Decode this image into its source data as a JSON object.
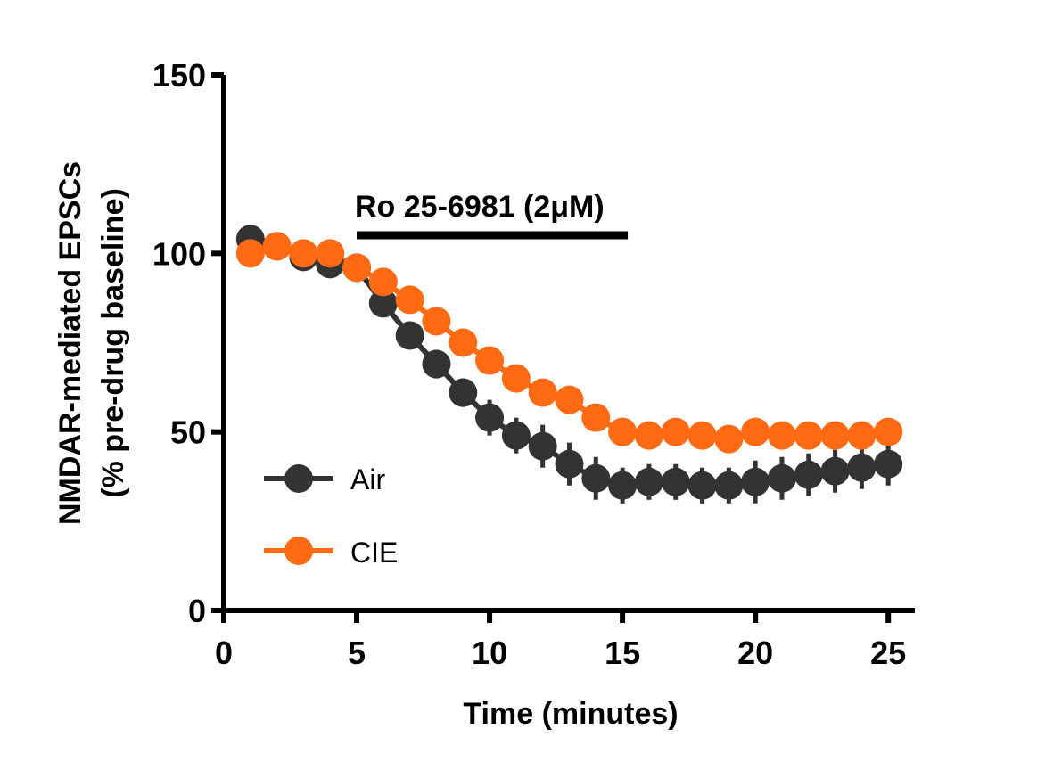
{
  "chart_data": {
    "type": "line",
    "xlabel": "Time (minutes)",
    "ylabel_line1": "NMDAR-mediated EPSCs",
    "ylabel_line2": "(% pre-drug baseline)",
    "xlim": [
      0,
      26
    ],
    "ylim": [
      0,
      150
    ],
    "xticks": [
      0,
      5,
      10,
      15,
      20,
      25
    ],
    "yticks": [
      0,
      50,
      100,
      150
    ],
    "grid": false,
    "legend_position": "bottom-left",
    "annotation": {
      "label": "Ro 25-6981 (2μM)",
      "x_start": 5,
      "x_end": 15.2
    },
    "x": [
      1,
      2,
      3,
      4,
      5,
      6,
      7,
      8,
      9,
      10,
      11,
      12,
      13,
      14,
      15,
      16,
      17,
      18,
      19,
      20,
      21,
      22,
      23,
      24,
      25
    ],
    "series": [
      {
        "name": "Air",
        "color": "#333333",
        "values": [
          104,
          102,
          99,
          97,
          96,
          86,
          77,
          69,
          61,
          54,
          49,
          46,
          41,
          37,
          35,
          36,
          36,
          35,
          35,
          36,
          37,
          38,
          39,
          40,
          41
        ],
        "errors": [
          1.5,
          1.5,
          2,
          2,
          2,
          3,
          3,
          4,
          4,
          5,
          5,
          6,
          6,
          6,
          5,
          5,
          5,
          5,
          5,
          6,
          6,
          6,
          6,
          6,
          6
        ]
      },
      {
        "name": "CIE",
        "color": "#ff6a13",
        "values": [
          100,
          102,
          100,
          100,
          96,
          92,
          87,
          81,
          75,
          70,
          65,
          61,
          59,
          54,
          50,
          49,
          50,
          49,
          48,
          50,
          49,
          49,
          49,
          49,
          50
        ]
      }
    ]
  }
}
